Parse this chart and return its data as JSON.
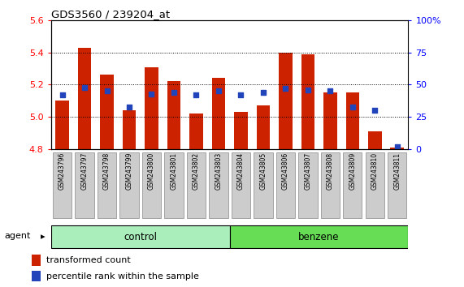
{
  "title": "GDS3560 / 239204_at",
  "samples": [
    "GSM243796",
    "GSM243797",
    "GSM243798",
    "GSM243799",
    "GSM243800",
    "GSM243801",
    "GSM243802",
    "GSM243803",
    "GSM243804",
    "GSM243805",
    "GSM243806",
    "GSM243807",
    "GSM243808",
    "GSM243809",
    "GSM243810",
    "GSM243811"
  ],
  "bar_values": [
    5.1,
    5.43,
    5.26,
    5.04,
    5.31,
    5.22,
    5.02,
    5.24,
    5.03,
    5.07,
    5.4,
    5.39,
    5.15,
    5.15,
    4.91,
    4.81
  ],
  "percentile_ranks": [
    42,
    48,
    45,
    33,
    43,
    44,
    42,
    45,
    42,
    44,
    47,
    46,
    45,
    33,
    30,
    2
  ],
  "n_control": 8,
  "n_benzene": 8,
  "ylim": [
    4.8,
    5.6
  ],
  "yticks": [
    4.8,
    5.0,
    5.2,
    5.4,
    5.6
  ],
  "right_yticks": [
    0,
    25,
    50,
    75,
    100
  ],
  "bar_color": "#CC2200",
  "percentile_color": "#2244BB",
  "control_color": "#AAEEBB",
  "benzene_color": "#66DD55",
  "bar_bottom": 4.8,
  "legend_labels": [
    "transformed count",
    "percentile rank within the sample"
  ]
}
